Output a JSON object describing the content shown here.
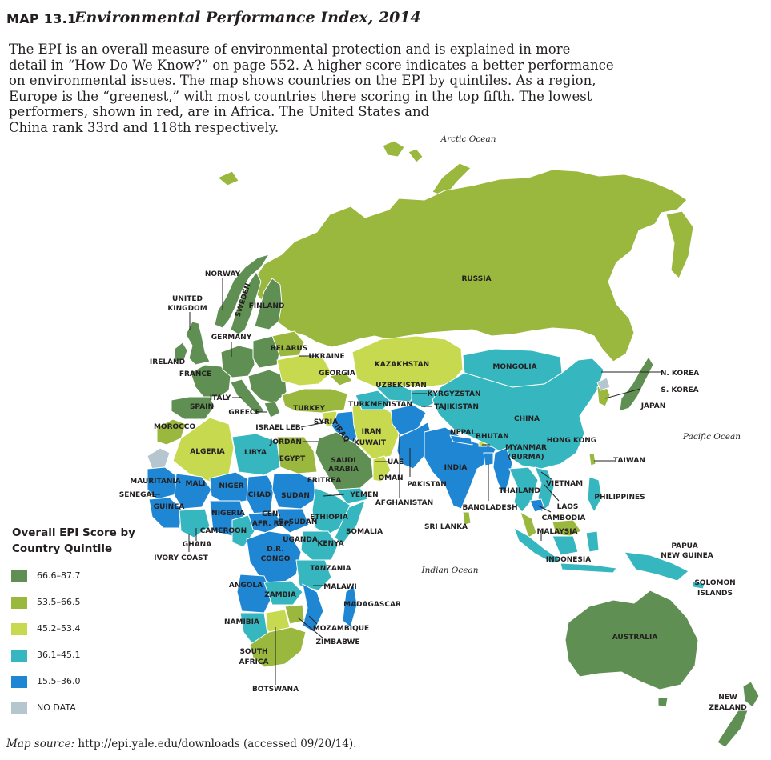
{
  "header": {
    "map_label": "MAP 13.1",
    "title": "Environmental Performance Index, 2014"
  },
  "description": [
    "The EPI is an overall measure of environmental protection and is explained in more",
    "detail in “How Do We Know?” on page 552. A higher score indicates a better performance",
    "on environmental issues. The map shows countries on the EPI by quintiles. As a region,",
    "Europe is the “greenest,” with most countries there scoring in the top fifth. The lowest",
    "performers, shown in red, are in Africa. The United States and",
    "China rank 33rd and 118th respectively."
  ],
  "oceans": [
    "Arctic Ocean",
    "Pacific Ocean",
    "Indian Ocean"
  ],
  "legend": {
    "title_line1": "Overall EPI Score by",
    "title_line2": "Country Quintile",
    "items": [
      {
        "label": "66.6–87.7",
        "color": "#5f8f52"
      },
      {
        "label": "53.5–66.5",
        "color": "#9ab73e"
      },
      {
        "label": "45.2–53.4",
        "color": "#c7da4f"
      },
      {
        "label": "36.1–45.1",
        "color": "#36b7bf"
      },
      {
        "label": "15.5–36.0",
        "color": "#1f86d3"
      },
      {
        "label": "NO DATA",
        "color": "#b5c6cf"
      }
    ]
  },
  "countries": [
    "NORWAY",
    "UNITED KINGDOM",
    "SWEDEN",
    "FINLAND",
    "RUSSIA",
    "GERMANY",
    "IRELAND",
    "BELARUS",
    "UKRAINE",
    "FRANCE",
    "GEORGIA",
    "KAZAKHSTAN",
    "MONGOLIA",
    "N. KOREA",
    "S. KOREA",
    "JAPAN",
    "UZBEKISTAN",
    "KYRGYZSTAN",
    "TURKMENISTAN",
    "TAJIKISTAN",
    "ITALY",
    "SPAIN",
    "GREECE",
    "TURKEY",
    "ISRAEL",
    "LEB.",
    "SYRIA",
    "IRAQ",
    "IRAN",
    "CHINA",
    "JORDAN",
    "KUWAIT",
    "NEPAL",
    "BHUTAN",
    "MOROCCO",
    "ALGERIA",
    "LIBYA",
    "EGYPT",
    "SAUDI ARABIA",
    "UAE",
    "OMAN",
    "PAKISTAN",
    "INDIA",
    "MYANMAR (BURMA)",
    "HONG KONG",
    "TAIWAN",
    "MAURITANIA",
    "MALI",
    "NIGER",
    "CHAD",
    "SUDAN",
    "ERITREA",
    "YEMEN",
    "AFGHANISTAN",
    "BANGLADESH",
    "THAILAND",
    "VIETNAM",
    "SENEGAL",
    "GUINEA",
    "NIGERIA",
    "CEN. AFR. REP.",
    "S. SUDAN",
    "ETHIOPIA",
    "SOMALIA",
    "LAOS",
    "CAMBODIA",
    "PHILIPPINES",
    "CAMEROON",
    "GHANA",
    "IVORY COAST",
    "UGANDA",
    "KENYA",
    "D.R. CONGO",
    "SRI LANKA",
    "MALAYSIA",
    "TANZANIA",
    "INDONESIA",
    "PAPUA NEW GUINEA",
    "SOLOMON ISLANDS",
    "ANGOLA",
    "MALAWI",
    "ZAMBIA",
    "MADAGASCAR",
    "NAMIBIA",
    "MOZAMBIQUE",
    "ZIMBABWE",
    "AUSTRALIA",
    "SOUTH AFRICA",
    "BOTSWANA",
    "NEW ZEALAND"
  ],
  "source": {
    "label": "Map source:",
    "text": "http://epi.yale.edu/downloads (accessed 09/20/14)."
  }
}
